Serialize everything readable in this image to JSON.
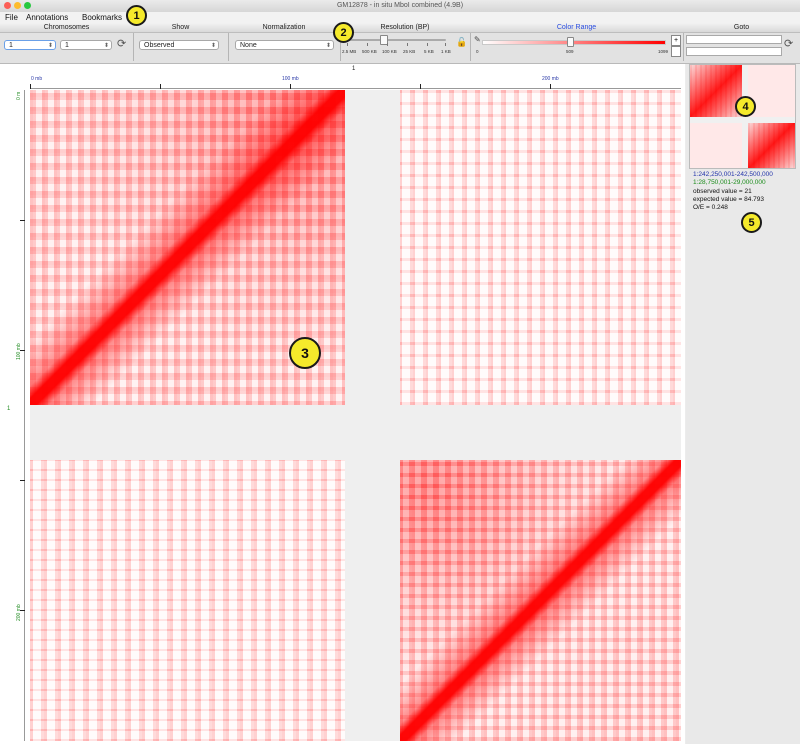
{
  "window": {
    "title": "GM12878 - in situ MboI combined (4.9B)"
  },
  "menu": [
    "File",
    "Annotations",
    "Bookmarks"
  ],
  "chromosomes": {
    "header": "Chromosomes",
    "first": "1",
    "second": "1"
  },
  "show": {
    "header": "Show",
    "value": "Observed"
  },
  "normalization": {
    "header": "Normalization",
    "value": "None"
  },
  "resolution": {
    "header": "Resolution (BP)",
    "ticks": [
      "2.5 MB",
      "500 KB",
      "100 KB",
      "25 KB",
      "5 KB",
      "1 KB"
    ]
  },
  "color_range": {
    "header": "Color Range",
    "min": "0",
    "mid": "509",
    "max": "1099",
    "button": "+"
  },
  "goto": {
    "header": "Goto"
  },
  "map": {
    "chrom_label_top": "1",
    "chrom_label_left": "1",
    "x_ticks": [
      "0 mb",
      "100 mb",
      "200 mb"
    ],
    "y_ticks": [
      "0 m",
      "100 mb",
      "200 mb"
    ]
  },
  "info": {
    "x_range": "1:242,250,001-242,500,000",
    "y_range": "1:28,750,001-29,000,000",
    "observed": "observed value = 21",
    "expected": "expected value = 84.793",
    "oe": "O/E = 0.248"
  },
  "callouts": [
    "1",
    "2",
    "3",
    "4",
    "5"
  ],
  "colors": {
    "map_red": "#ff0000",
    "x_range": "#2233aa",
    "y_range": "#1a8c1a",
    "callout": "#f5ea2b"
  }
}
